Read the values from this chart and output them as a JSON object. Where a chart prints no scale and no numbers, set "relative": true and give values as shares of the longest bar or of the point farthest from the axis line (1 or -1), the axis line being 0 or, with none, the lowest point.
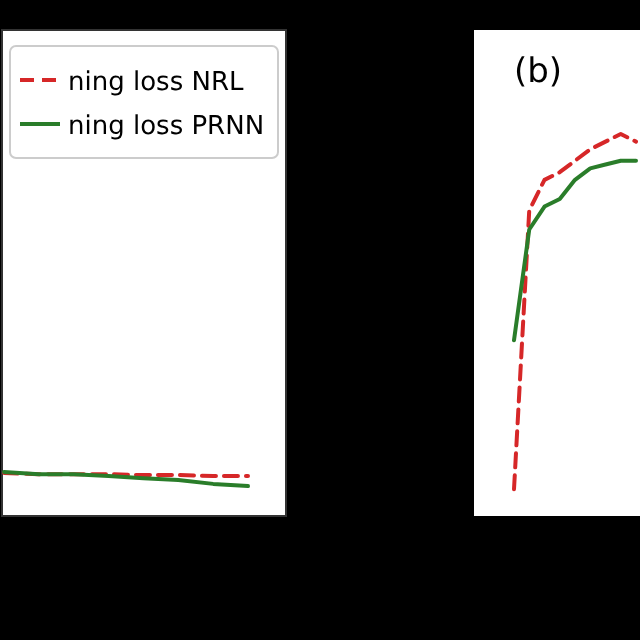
{
  "chart_data": [
    {
      "type": "line",
      "relative": true,
      "categories": [
        null,
        null,
        null,
        null,
        null,
        null,
        null,
        null
      ],
      "legend": "top right",
      "series": [
        {
          "name": "ning loss NRL",
          "color": "#d62728",
          "line_style": "dashed",
          "values": [
            0.98,
            0.95,
            0.95,
            0.95,
            0.93,
            0.93,
            0.91,
            0.91
          ]
        },
        {
          "name": "ning loss PRNN",
          "color": "#2a7d2a",
          "line_style": "solid",
          "values": [
            1,
            0.95,
            0.95,
            0.91,
            0.86,
            0.82,
            0.73,
            0.68
          ]
        }
      ]
    },
    {
      "type": "line",
      "relative": true,
      "title": "(b)",
      "categories": [
        null,
        null,
        null,
        null,
        null,
        null,
        null,
        null,
        null
      ],
      "series": [
        {
          "color": "#d62728",
          "line_style": "dashed",
          "values": [
            0.07,
            0.8,
            0.88,
            0.9,
            0.93,
            0.96,
            0.98,
            1,
            0.98
          ]
        },
        {
          "color": "#2a7d2a",
          "line_style": "solid",
          "values": [
            0.46,
            0.75,
            0.81,
            0.83,
            0.88,
            0.91,
            0.92,
            0.93,
            0.93
          ]
        }
      ]
    }
  ]
}
